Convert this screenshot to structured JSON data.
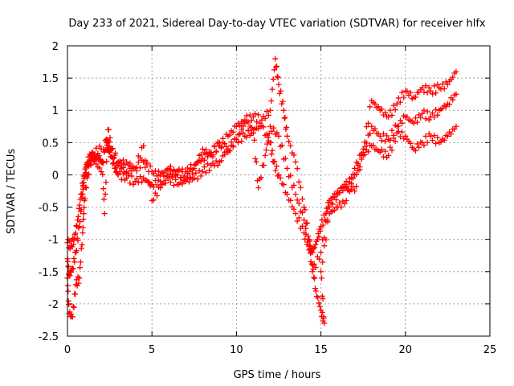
{
  "chart_data": {
    "type": "scatter",
    "title": "Day 233 of 2021, Sidereal Day-to-day VTEC variation (SDTVAR) for receiver hlfx",
    "xlabel": "GPS time / hours",
    "ylabel": "SDTVAR / TECUs",
    "xlim": [
      0,
      25
    ],
    "ylim": [
      -2.5,
      2
    ],
    "xticks": [
      0,
      5,
      10,
      15,
      20,
      25
    ],
    "yticks": [
      -2.5,
      -2,
      -1.5,
      -1,
      -0.5,
      0,
      0.5,
      1,
      1.5,
      2
    ],
    "xtick_labels": [
      "0",
      "5",
      "10",
      "15",
      "20",
      "25"
    ],
    "ytick_labels": [
      "-2.5",
      "-2",
      "-1.5",
      "-1",
      "-0.5",
      "0",
      "0.5",
      "1",
      "1.5",
      "2"
    ],
    "grid": true,
    "marker": "+",
    "color": "#ff0000",
    "series": [
      {
        "values": [
          [
            0.0,
            -1.3
          ],
          [
            0.1,
            -1.55
          ],
          [
            0.3,
            -1.45
          ],
          [
            0.5,
            -1.2
          ],
          [
            0.7,
            -0.8
          ],
          [
            0.9,
            -0.3
          ],
          [
            1.0,
            0.0
          ],
          [
            1.2,
            0.2
          ],
          [
            1.4,
            0.3
          ],
          [
            1.6,
            0.25
          ],
          [
            1.8,
            0.3
          ],
          [
            2.0,
            0.2
          ],
          [
            2.3,
            0.55
          ],
          [
            2.5,
            0.35
          ],
          [
            2.8,
            0.1
          ],
          [
            3.0,
            0.0
          ],
          [
            3.5,
            -0.05
          ],
          [
            4.0,
            -0.1
          ],
          [
            4.5,
            -0.05
          ],
          [
            5.0,
            -0.15
          ],
          [
            5.5,
            -0.1
          ],
          [
            6.0,
            -0.05
          ],
          [
            6.5,
            -0.15
          ],
          [
            7.0,
            -0.1
          ],
          [
            7.5,
            -0.05
          ],
          [
            8.0,
            0.05
          ],
          [
            8.5,
            0.15
          ],
          [
            9.0,
            0.2
          ],
          [
            9.5,
            0.4
          ],
          [
            10.0,
            0.55
          ],
          [
            10.5,
            0.6
          ],
          [
            11.0,
            0.7
          ],
          [
            11.5,
            0.75
          ],
          [
            12.0,
            0.5
          ],
          [
            12.2,
            0.2
          ],
          [
            12.5,
            0.0
          ],
          [
            13.0,
            -0.3
          ],
          [
            13.5,
            -0.6
          ],
          [
            14.0,
            -0.9
          ],
          [
            14.3,
            -1.1
          ],
          [
            14.5,
            -1.2
          ],
          [
            14.8,
            -1.0
          ],
          [
            15.0,
            -0.8
          ],
          [
            15.3,
            -0.6
          ],
          [
            15.5,
            -0.4
          ],
          [
            16.0,
            -0.25
          ],
          [
            16.5,
            -0.2
          ],
          [
            17.0,
            0.0
          ],
          [
            17.5,
            0.3
          ],
          [
            18.0,
            0.45
          ],
          [
            18.5,
            0.35
          ],
          [
            19.0,
            0.3
          ],
          [
            19.5,
            0.65
          ],
          [
            20.0,
            0.6
          ],
          [
            20.5,
            0.4
          ],
          [
            21.0,
            0.5
          ],
          [
            21.5,
            0.6
          ],
          [
            22.0,
            0.5
          ],
          [
            22.5,
            0.6
          ],
          [
            23.0,
            0.75
          ]
        ]
      },
      {
        "values": [
          [
            0.0,
            -1.05
          ],
          [
            0.2,
            -1.1
          ],
          [
            0.4,
            -1.0
          ],
          [
            0.6,
            -0.7
          ],
          [
            0.8,
            -0.3
          ],
          [
            1.0,
            0.0
          ],
          [
            1.2,
            0.15
          ],
          [
            1.5,
            0.25
          ],
          [
            2.0,
            0.05
          ],
          [
            2.3,
            0.5
          ],
          [
            2.5,
            0.4
          ],
          [
            3.0,
            0.15
          ],
          [
            3.5,
            0.05
          ],
          [
            4.0,
            0.1
          ],
          [
            4.5,
            0.2
          ],
          [
            5.0,
            0.05
          ],
          [
            5.5,
            0.0
          ],
          [
            6.0,
            0.1
          ],
          [
            6.5,
            0.0
          ],
          [
            7.0,
            0.05
          ],
          [
            7.5,
            0.15
          ],
          [
            8.0,
            0.25
          ],
          [
            8.5,
            0.35
          ],
          [
            9.0,
            0.45
          ],
          [
            9.5,
            0.6
          ],
          [
            10.0,
            0.75
          ],
          [
            10.5,
            0.85
          ],
          [
            11.0,
            0.9
          ],
          [
            11.5,
            0.85
          ],
          [
            12.0,
            1.0
          ],
          [
            12.3,
            1.8
          ],
          [
            12.5,
            1.4
          ],
          [
            12.8,
            1.0
          ],
          [
            13.0,
            0.6
          ],
          [
            13.5,
            0.2
          ],
          [
            14.0,
            -0.5
          ],
          [
            14.3,
            -1.0
          ],
          [
            14.5,
            -1.4
          ],
          [
            14.7,
            -1.8
          ],
          [
            15.0,
            -2.1
          ],
          [
            15.2,
            -2.3
          ],
          [
            15.0,
            -1.5
          ],
          [
            15.5,
            -0.6
          ],
          [
            16.0,
            -0.5
          ],
          [
            16.5,
            -0.4
          ],
          [
            17.0,
            0.1
          ],
          [
            17.5,
            0.35
          ],
          [
            18.0,
            0.75
          ],
          [
            18.5,
            0.6
          ],
          [
            19.0,
            0.55
          ],
          [
            19.5,
            0.75
          ],
          [
            20.0,
            0.9
          ],
          [
            20.5,
            0.8
          ],
          [
            21.0,
            0.95
          ],
          [
            21.5,
            0.9
          ],
          [
            22.0,
            1.0
          ],
          [
            22.5,
            1.1
          ],
          [
            23.0,
            1.25
          ]
        ]
      },
      {
        "values": [
          [
            0.0,
            -1.6
          ],
          [
            0.1,
            -2.15
          ],
          [
            0.3,
            -2.2
          ],
          [
            0.5,
            -1.7
          ],
          [
            0.7,
            -1.6
          ],
          [
            0.9,
            -0.9
          ],
          [
            1.0,
            -0.4
          ],
          [
            1.2,
            0.0
          ],
          [
            1.5,
            0.35
          ],
          [
            2.0,
            0.4
          ],
          [
            2.2,
            -0.6
          ],
          [
            2.4,
            0.7
          ],
          [
            2.6,
            0.4
          ],
          [
            3.0,
            0.2
          ],
          [
            3.5,
            0.2
          ],
          [
            4.0,
            0.1
          ],
          [
            4.5,
            0.45
          ],
          [
            5.0,
            -0.4
          ],
          [
            5.5,
            -0.2
          ],
          [
            6.0,
            0.0
          ],
          [
            6.5,
            0.05
          ],
          [
            7.0,
            -0.05
          ],
          [
            7.5,
            0.1
          ],
          [
            8.0,
            0.4
          ],
          [
            8.5,
            0.3
          ],
          [
            9.0,
            0.5
          ],
          [
            9.5,
            0.35
          ],
          [
            10.0,
            0.55
          ],
          [
            10.5,
            0.8
          ],
          [
            11.0,
            0.65
          ],
          [
            11.3,
            -0.2
          ],
          [
            11.7,
            0.3
          ],
          [
            12.0,
            0.75
          ],
          [
            12.5,
            0.6
          ],
          [
            13.0,
            0.1
          ],
          [
            13.5,
            -0.3
          ],
          [
            14.0,
            -0.7
          ],
          [
            14.5,
            -1.5
          ],
          [
            15.0,
            -1.2
          ],
          [
            15.5,
            -0.5
          ],
          [
            16.0,
            -0.3
          ],
          [
            16.5,
            -0.1
          ],
          [
            17.0,
            -0.25
          ],
          [
            17.5,
            0.4
          ],
          [
            18.0,
            1.15
          ],
          [
            18.5,
            1.0
          ],
          [
            19.0,
            0.9
          ],
          [
            19.5,
            1.1
          ],
          [
            20.0,
            1.3
          ],
          [
            20.5,
            1.2
          ],
          [
            21.0,
            1.35
          ],
          [
            21.5,
            1.3
          ],
          [
            22.0,
            1.35
          ],
          [
            22.5,
            1.4
          ],
          [
            23.0,
            1.6
          ]
        ]
      }
    ]
  }
}
